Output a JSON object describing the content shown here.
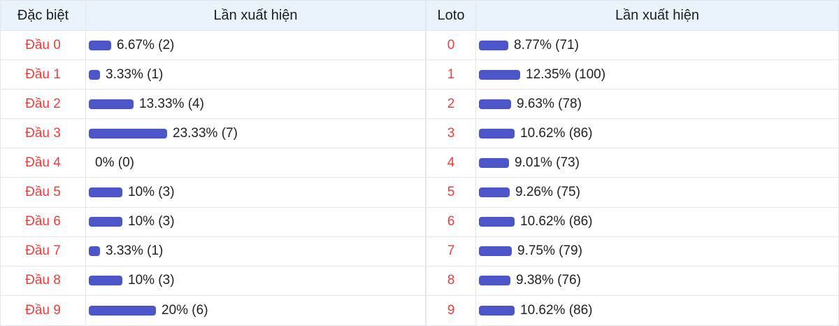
{
  "colors": {
    "bar": "#4c56c9",
    "header_bg": "#eaf2fc",
    "label_red": "#f53b3b",
    "border": "#e3e6ea",
    "text": "#1d1e23"
  },
  "tables": [
    {
      "header": {
        "label_col": "Đặc biệt",
        "value_col": "Lần xuất hiện"
      },
      "rows": [
        {
          "label": "Đầu 0",
          "pct": 6.67,
          "display": "6.67% (2)"
        },
        {
          "label": "Đầu 1",
          "pct": 3.33,
          "display": "3.33% (1)"
        },
        {
          "label": "Đầu 2",
          "pct": 13.33,
          "display": "13.33% (4)"
        },
        {
          "label": "Đầu 3",
          "pct": 23.33,
          "display": "23.33% (7)"
        },
        {
          "label": "Đầu 4",
          "pct": 0,
          "display": "0% (0)"
        },
        {
          "label": "Đầu 5",
          "pct": 10,
          "display": "10% (3)"
        },
        {
          "label": "Đầu 6",
          "pct": 10,
          "display": "10% (3)"
        },
        {
          "label": "Đầu 7",
          "pct": 3.33,
          "display": "3.33% (1)"
        },
        {
          "label": "Đầu 8",
          "pct": 10,
          "display": "10% (3)"
        },
        {
          "label": "Đầu 9",
          "pct": 20,
          "display": "20% (6)"
        }
      ]
    },
    {
      "header": {
        "label_col": "Loto",
        "value_col": "Lần xuất hiện"
      },
      "rows": [
        {
          "label": "0",
          "pct": 8.77,
          "display": "8.77% (71)"
        },
        {
          "label": "1",
          "pct": 12.35,
          "display": "12.35% (100)"
        },
        {
          "label": "2",
          "pct": 9.63,
          "display": "9.63% (78)"
        },
        {
          "label": "3",
          "pct": 10.62,
          "display": "10.62% (86)"
        },
        {
          "label": "4",
          "pct": 9.01,
          "display": "9.01% (73)"
        },
        {
          "label": "5",
          "pct": 9.26,
          "display": "9.26% (75)"
        },
        {
          "label": "6",
          "pct": 10.62,
          "display": "10.62% (86)"
        },
        {
          "label": "7",
          "pct": 9.75,
          "display": "9.75% (79)"
        },
        {
          "label": "8",
          "pct": 9.38,
          "display": "9.38% (76)"
        },
        {
          "label": "9",
          "pct": 10.62,
          "display": "10.62% (86)"
        }
      ]
    }
  ],
  "chart_data": [
    {
      "type": "bar",
      "orientation": "horizontal",
      "title": "Đặc biệt - Lần xuất hiện",
      "categories": [
        "Đầu 0",
        "Đầu 1",
        "Đầu 2",
        "Đầu 3",
        "Đầu 4",
        "Đầu 5",
        "Đầu 6",
        "Đầu 7",
        "Đầu 8",
        "Đầu 9"
      ],
      "values_pct": [
        6.67,
        3.33,
        13.33,
        23.33,
        0,
        10,
        10,
        3.33,
        10,
        20
      ],
      "counts": [
        2,
        1,
        4,
        7,
        0,
        3,
        3,
        1,
        3,
        6
      ],
      "xlabel": "",
      "ylabel": "",
      "xlim": [
        0,
        100
      ],
      "grid": false,
      "legend": false
    },
    {
      "type": "bar",
      "orientation": "horizontal",
      "title": "Loto - Lần xuất hiện",
      "categories": [
        "0",
        "1",
        "2",
        "3",
        "4",
        "5",
        "6",
        "7",
        "8",
        "9"
      ],
      "values_pct": [
        8.77,
        12.35,
        9.63,
        10.62,
        9.01,
        9.26,
        10.62,
        9.75,
        9.38,
        10.62
      ],
      "counts": [
        71,
        100,
        78,
        86,
        73,
        75,
        86,
        79,
        76,
        86
      ],
      "xlabel": "",
      "ylabel": "",
      "xlim": [
        0,
        100
      ],
      "grid": false,
      "legend": false
    }
  ]
}
